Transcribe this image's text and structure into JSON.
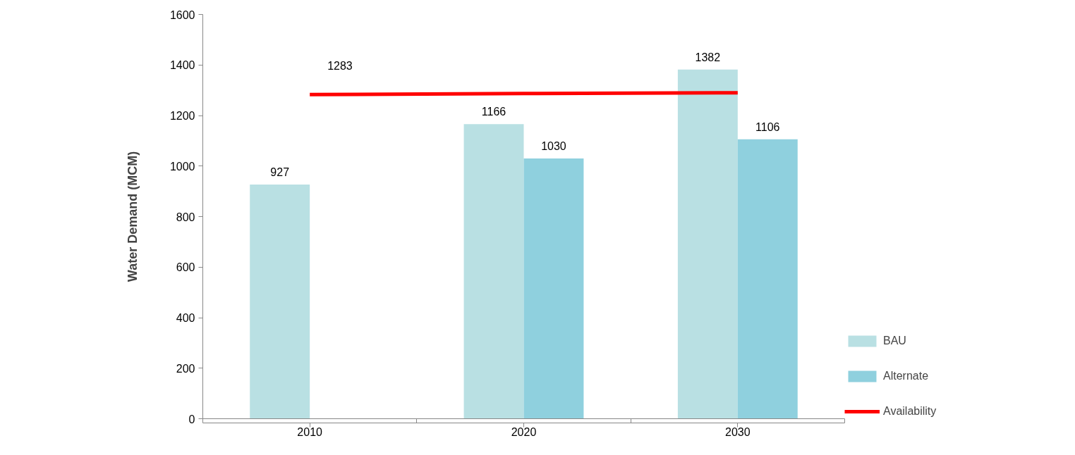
{
  "chart_data": {
    "type": "bar",
    "ylabel": "Water Demand (MCM)",
    "categories": [
      "2010",
      "2020",
      "2030"
    ],
    "series": [
      {
        "name": "BAU",
        "color": "#b9e0e3",
        "values": [
          927,
          1166,
          1382
        ],
        "value_labels": [
          "927",
          "1166",
          "1382"
        ]
      },
      {
        "name": "Alternate",
        "color": "#8fd0de",
        "values": [
          null,
          1030,
          1106
        ],
        "value_labels": [
          null,
          "1030",
          "1106"
        ]
      },
      {
        "name": "Availability",
        "type": "line",
        "color": "#ff0000",
        "values": [
          1283,
          1287,
          1290
        ],
        "value_labels": [
          "1283",
          null,
          null
        ]
      }
    ],
    "ylim": [
      0,
      1600
    ],
    "yticks": [
      0,
      200,
      400,
      600,
      800,
      1000,
      1200,
      1400,
      1600
    ],
    "grid": false,
    "legend": "right"
  }
}
